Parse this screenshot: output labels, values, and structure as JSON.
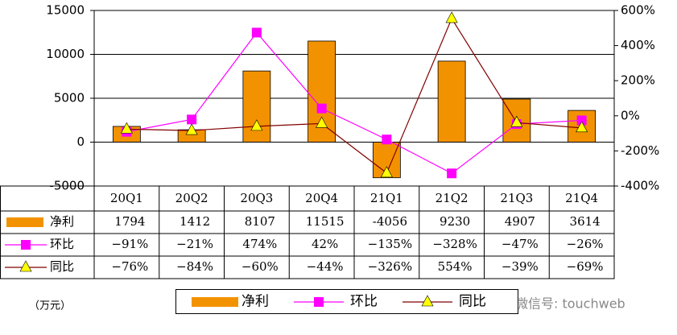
{
  "chart_data": {
    "type": "bar_line",
    "categories": [
      "20Q1",
      "20Q2",
      "20Q3",
      "20Q4",
      "21Q1",
      "21Q2",
      "21Q3",
      "21Q4"
    ],
    "series": [
      {
        "name": "净利",
        "type": "bar",
        "color": "#f39200",
        "values": [
          1794,
          1412,
          8107,
          11515,
          -4056,
          9230,
          4907,
          3614
        ]
      },
      {
        "name": "环比",
        "type": "line",
        "axis": "y2",
        "color": "#ff00ff",
        "marker": "square",
        "values": [
          -91,
          -21,
          474,
          42,
          -135,
          -328,
          -47,
          -26
        ],
        "value_labels": [
          "−91%",
          "−21%",
          "474%",
          "42%",
          "−135%",
          "−328%",
          "−47%",
          "−26%"
        ]
      },
      {
        "name": "同比",
        "type": "line",
        "axis": "y2",
        "color": "#800000",
        "marker": "triangle",
        "marker_color": "#ffff00",
        "values": [
          -76,
          -84,
          -60,
          -44,
          -326,
          554,
          -39,
          -69
        ],
        "value_labels": [
          "−76%",
          "−84%",
          "−60%",
          "−44%",
          "−326%",
          "554%",
          "−39%",
          "−69%"
        ]
      }
    ],
    "ylim": [
      -5000,
      15000
    ],
    "yticks": [
      -5000,
      0,
      5000,
      10000,
      15000
    ],
    "y2lim": [
      -400,
      600
    ],
    "y2ticks": [
      {
        "value": -400,
        "label": "-400%"
      },
      {
        "value": -200,
        "label": "-200%"
      },
      {
        "value": 0,
        "label": "0%"
      },
      {
        "value": 200,
        "label": "200%"
      },
      {
        "value": 400,
        "label": "400%"
      },
      {
        "value": 600,
        "label": "600%"
      }
    ],
    "grid": true,
    "unit_label": "（万元）",
    "watermark": "微信号: touchweb"
  }
}
